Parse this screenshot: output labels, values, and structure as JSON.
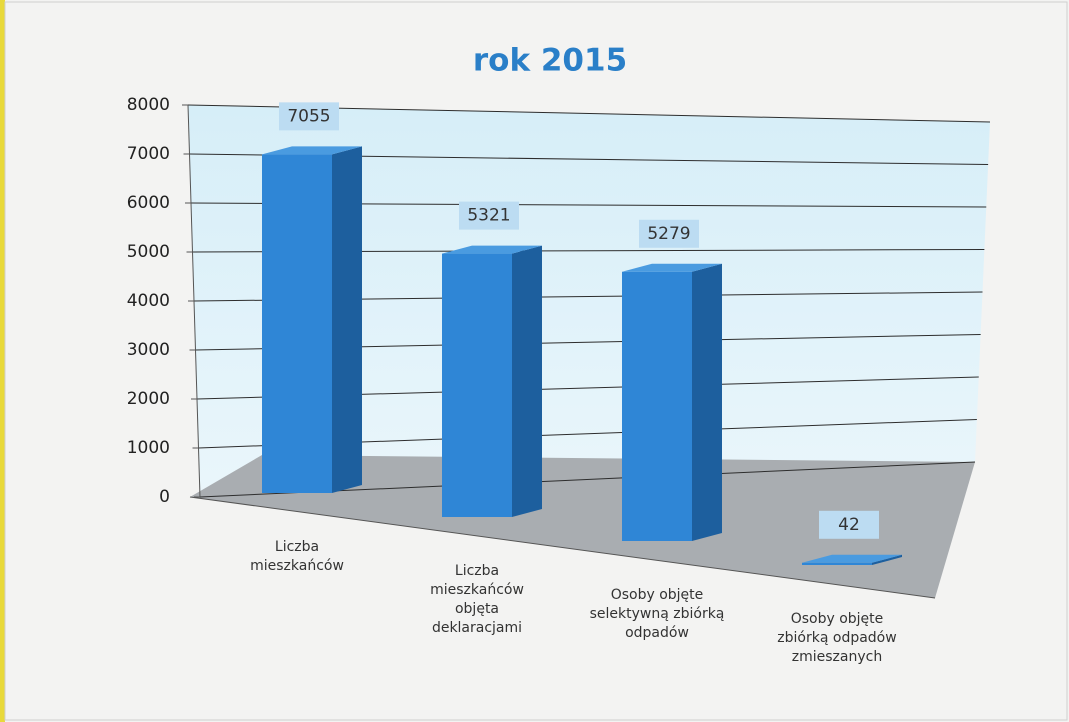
{
  "chart_data": {
    "type": "bar3d",
    "title": "rok 2015",
    "categories": [
      [
        "Liczba",
        "mieszkańców"
      ],
      [
        "Liczba",
        "mieszkańców",
        "objęta",
        "deklaracjami"
      ],
      [
        "Osoby objęte",
        "selektywną zbiórką",
        "odpadów"
      ],
      [
        "Osoby objęte",
        "zbiórką odpadów",
        "zmieszanych"
      ]
    ],
    "values": [
      7055,
      5321,
      5279,
      42
    ],
    "color": "#2f86d6",
    "ylim": [
      0,
      8000
    ],
    "yticks": [
      0,
      1000,
      2000,
      3000,
      4000,
      5000,
      6000,
      7000,
      8000
    ],
    "grid": true
  }
}
